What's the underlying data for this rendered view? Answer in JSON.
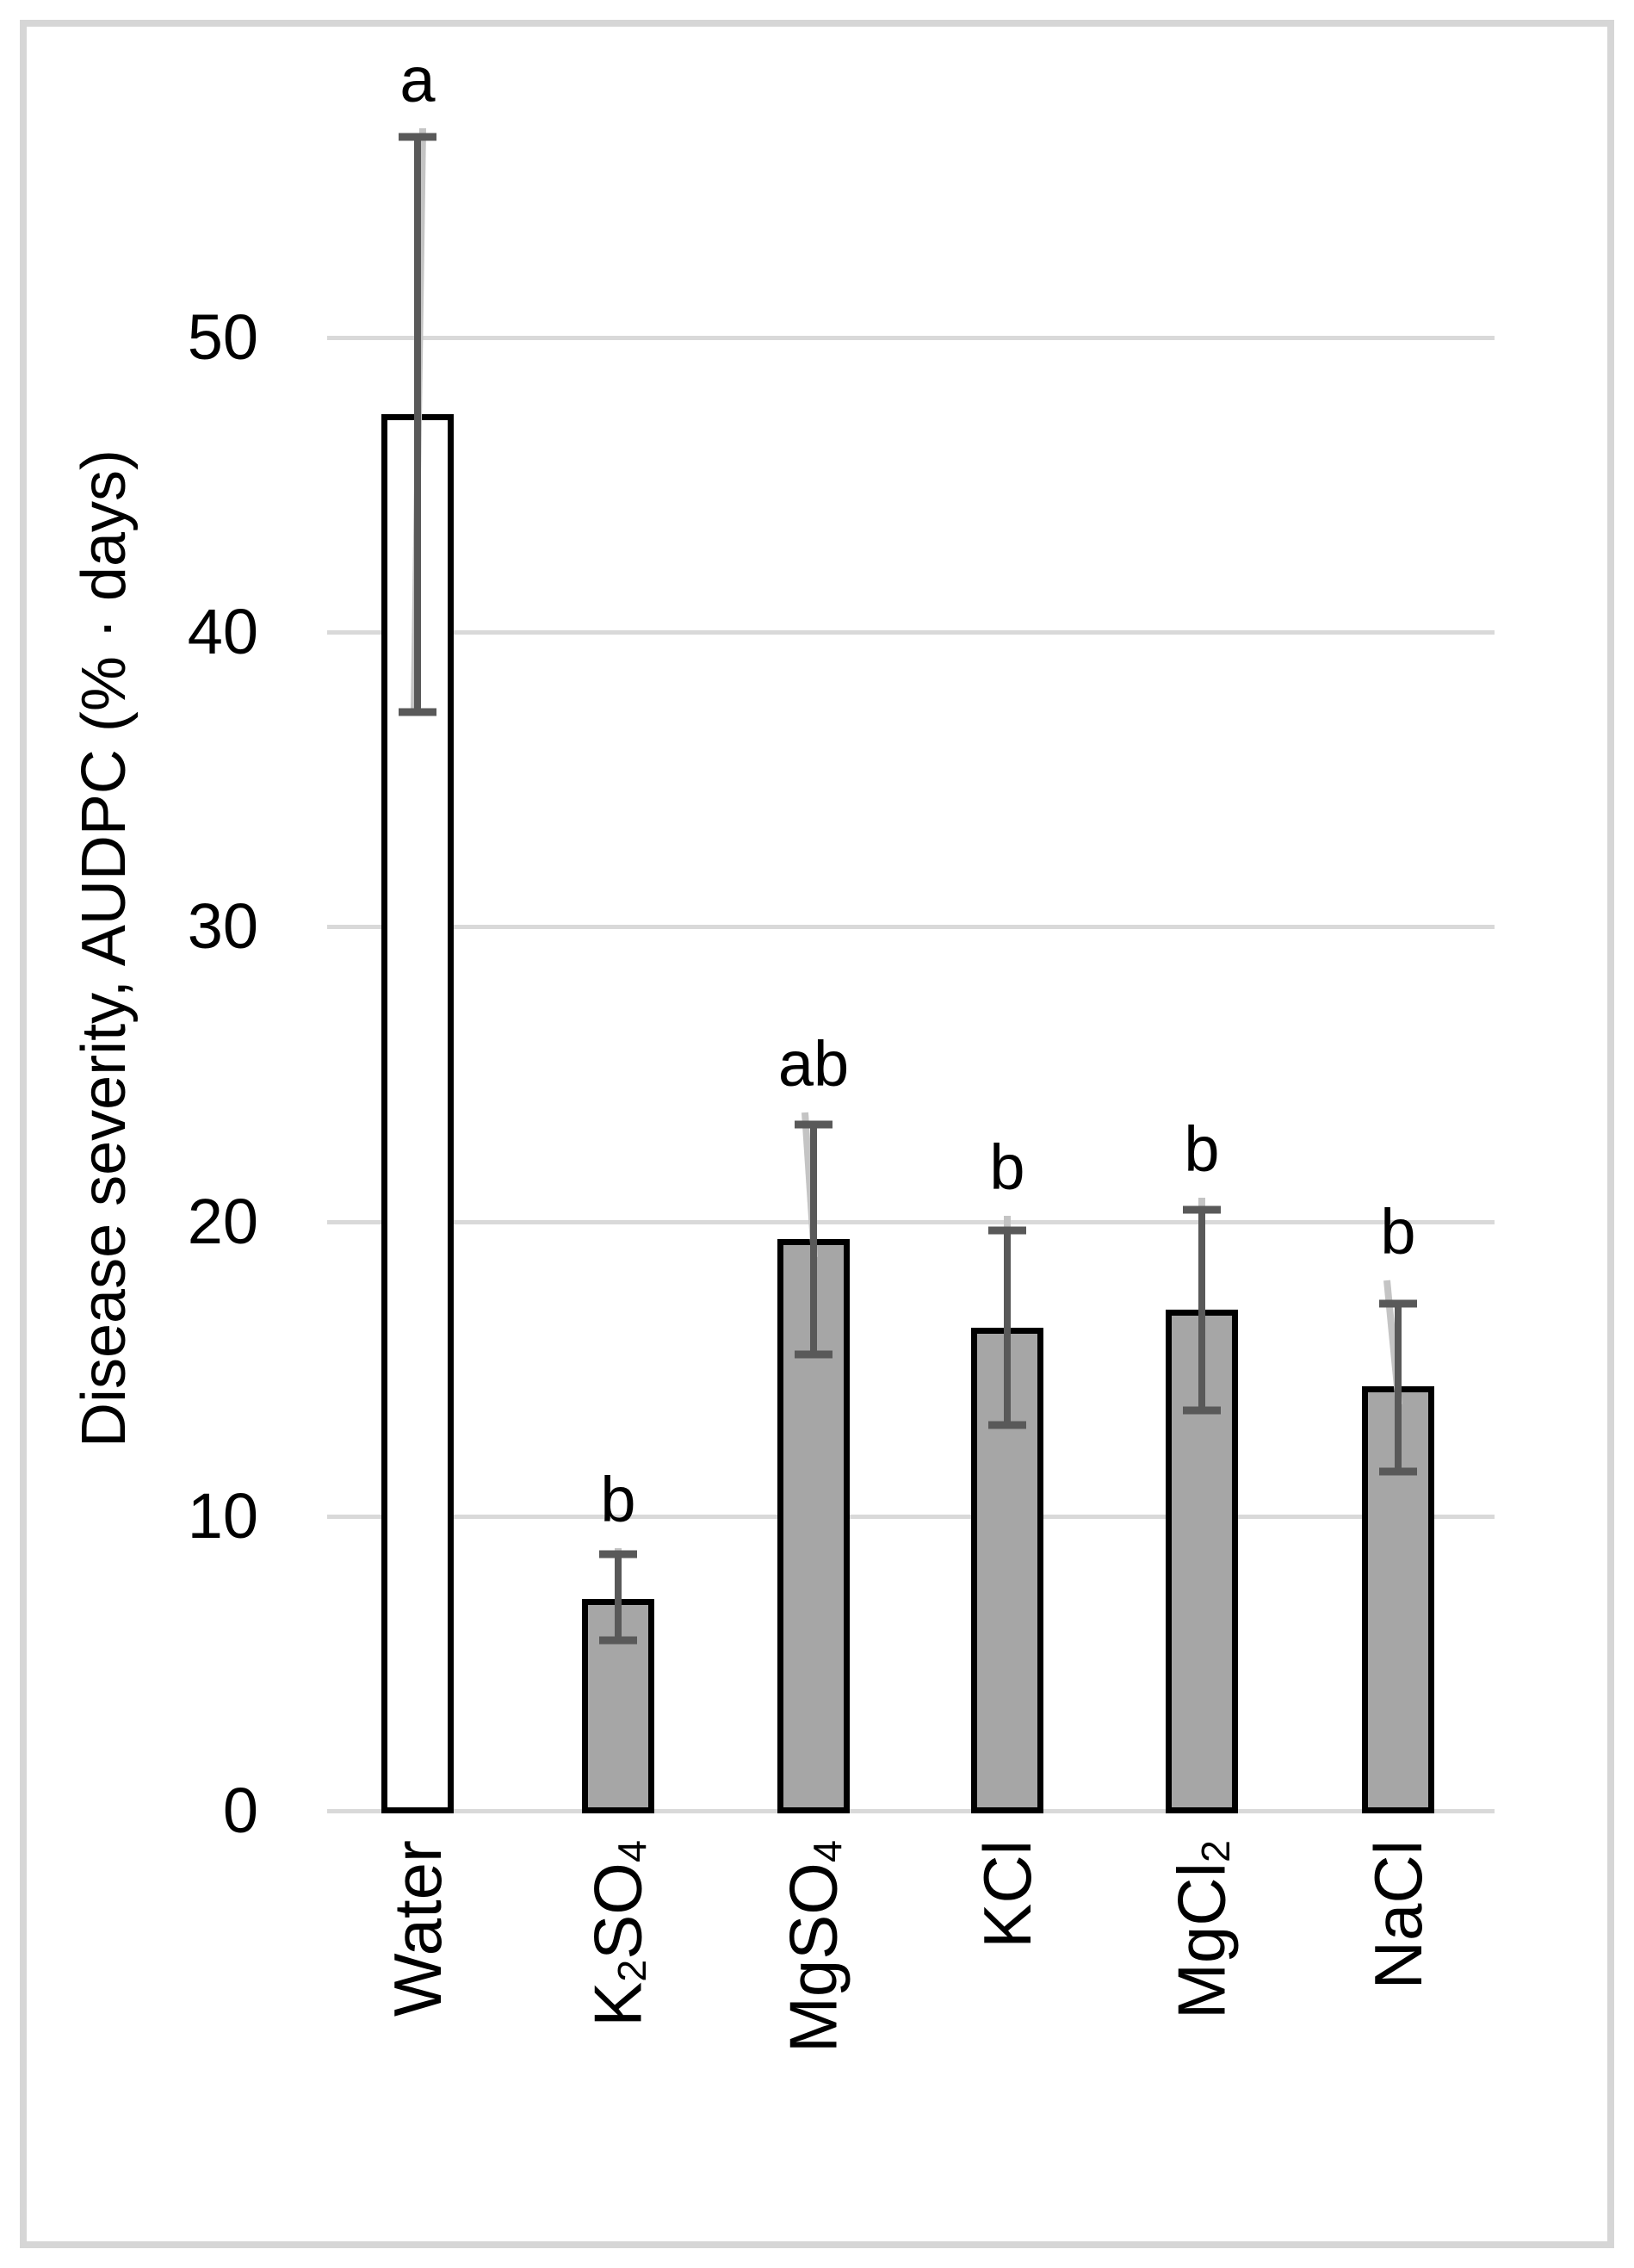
{
  "chart_data": {
    "type": "bar",
    "title": "",
    "ylabel": "Disease severity, AUDPC (% · days)",
    "xlabel": "",
    "categories": [
      "Water",
      "K2SO4",
      "MgSO4",
      "KCl",
      "MgCl2",
      "NaCl"
    ],
    "categories_rich": [
      [
        {
          "t": "Water",
          "sub": false
        }
      ],
      [
        {
          "t": "K",
          "sub": false
        },
        {
          "t": "2",
          "sub": true
        },
        {
          "t": "SO",
          "sub": false
        },
        {
          "t": "4",
          "sub": true
        }
      ],
      [
        {
          "t": "MgSO",
          "sub": false
        },
        {
          "t": "4",
          "sub": true
        }
      ],
      [
        {
          "t": "KCl",
          "sub": false
        }
      ],
      [
        {
          "t": "MgCl",
          "sub": false
        },
        {
          "t": "2",
          "sub": true
        }
      ],
      [
        {
          "t": "NaCl",
          "sub": false
        }
      ]
    ],
    "series": [
      {
        "name": "Disease severity AUDPC",
        "values": [
          47.4,
          7.2,
          19.4,
          16.4,
          17.0,
          14.4
        ]
      }
    ],
    "error_bars": {
      "upper": [
        56.8,
        8.7,
        23.3,
        19.7,
        20.4,
        17.2
      ],
      "lower": [
        37.3,
        5.8,
        15.5,
        13.1,
        13.6,
        11.5
      ]
    },
    "secondary_whisker": {
      "upper": [
        57.1,
        8.9,
        23.7,
        20.2,
        20.8,
        18.0
      ],
      "lower": [
        37.3,
        6.7,
        18.8,
        15.8,
        16.4,
        13.8
      ],
      "dx_top": [
        6,
        0,
        -10,
        0,
        0,
        -13
      ],
      "dx_bottom": [
        -4,
        0,
        1,
        0,
        0,
        1
      ]
    },
    "significance_letters": [
      "a",
      "b",
      "ab",
      "b",
      "b",
      "b"
    ],
    "yticks": [
      0,
      10,
      20,
      30,
      40,
      50
    ],
    "ylim": [
      0,
      58
    ],
    "grid": "horizontal",
    "legend": "none",
    "bar_fills": [
      "#ffffff",
      "#a6a6a6",
      "#a6a6a6",
      "#a6a6a6",
      "#a6a6a6",
      "#a6a6a6"
    ],
    "colors": {
      "bar_fill_default": "#a6a6a6",
      "bar_fill_water": "#ffffff",
      "bar_border": "#000000",
      "error_bar": "#595959",
      "secondary_whisker": "#c4c4c4",
      "gridline": "#d9d9d9",
      "frame_border": "#d6d6d6",
      "text": "#000000"
    }
  }
}
